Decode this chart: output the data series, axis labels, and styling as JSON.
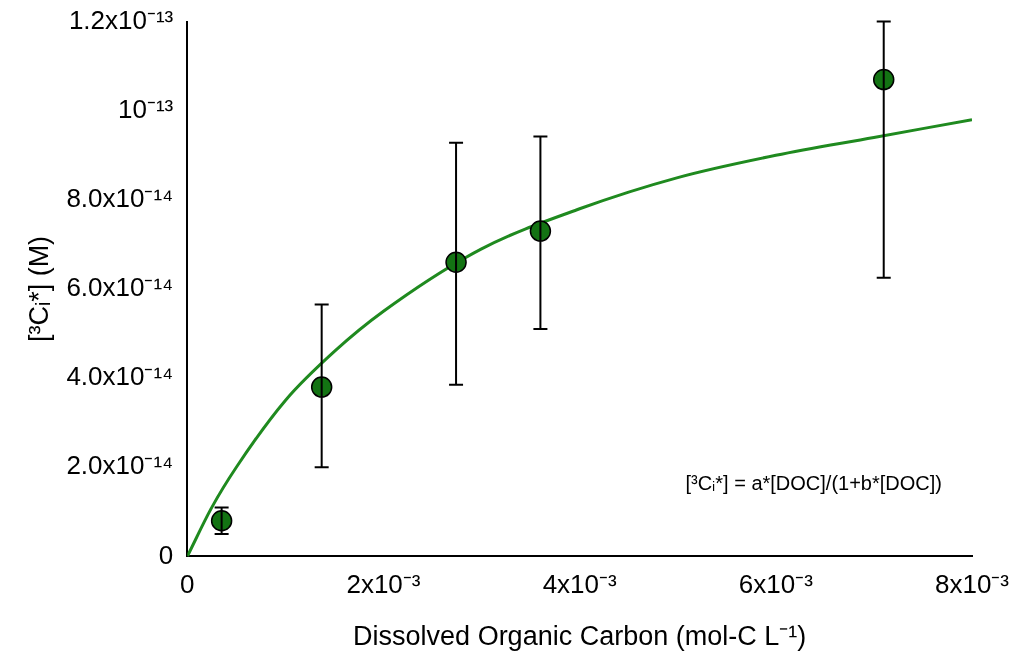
{
  "chart_data": {
    "type": "scatter",
    "xlabel": "Dissolved Organic Carbon (mol-C L⁻¹)",
    "ylabel": "[³Cᵢ*] (M)",
    "annotations": [
      "[³Cᵢ*] = a*[DOC]/(1+b*[DOC])"
    ],
    "series": [
      {
        "marker": "circle",
        "color": "#137313",
        "x": [
          0.00035,
          0.00137,
          0.00274,
          0.0036,
          0.0071
        ],
        "values": [
          8e-15,
          3.8e-14,
          6.6e-14,
          7.3e-14,
          1.07e-13
        ],
        "errors": [
          [
            5e-15,
            1.1e-14
          ],
          [
            2e-14,
            5.65e-14
          ],
          [
            3.85e-14,
            9.28e-14
          ],
          [
            5.1e-14,
            9.42e-14
          ],
          [
            6.25e-14,
            1.2e-13
          ]
        ]
      },
      {
        "type": "line",
        "color": "#1f8a1f",
        "x": [
          0,
          0.00025,
          0.0005,
          0.001,
          0.0015,
          0.002,
          0.003,
          0.004,
          0.005,
          0.006,
          0.007,
          0.008
        ],
        "values": [
          0,
          1.1e-14,
          2e-14,
          3.5e-14,
          4.6e-14,
          5.5e-14,
          6.9e-14,
          7.8e-14,
          8.5e-14,
          9e-14,
          9.4e-14,
          9.8e-14
        ]
      }
    ],
    "legend": false,
    "xlim": [
      0,
      0.008
    ],
    "xticks": [
      0,
      {
        "value": 0.002,
        "label": "2x10⁻³"
      },
      {
        "value": 0.004,
        "label": "4x10⁻³"
      },
      {
        "value": 0.006,
        "label": "6x10⁻³"
      },
      {
        "value": 0.008,
        "label": "8x10⁻³"
      }
    ],
    "ylim": [
      0,
      1.2e-13
    ],
    "yticks": [
      0,
      {
        "value": 2e-14,
        "label": "2.0x10⁻¹⁴"
      },
      {
        "value": 4e-14,
        "label": "4.0x10⁻¹⁴"
      },
      {
        "value": 6e-14,
        "label": "6.0x10⁻¹⁴"
      },
      {
        "value": 8e-14,
        "label": "8.0x10⁻¹⁴"
      },
      {
        "value": 1e-13,
        "label": "10⁻¹³"
      },
      {
        "value": 1.2e-13,
        "label": "1.2x10⁻¹³"
      }
    ]
  }
}
